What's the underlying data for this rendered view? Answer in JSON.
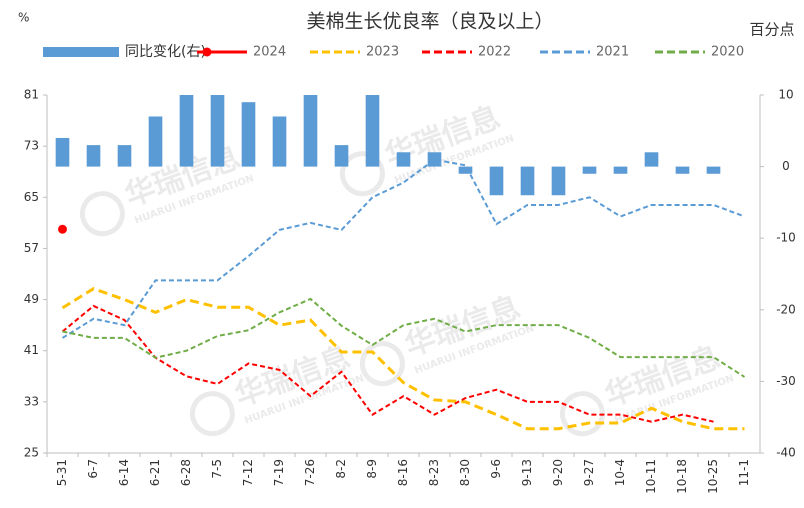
{
  "chart_data": {
    "type": "combo",
    "title": "美棉生长优良率（良及以上）",
    "y_label": "%",
    "y2_label": "百分点",
    "watermark": "华瑞信息",
    "watermark_sub": "HUARUI INFORMATION",
    "categories": [
      "5-31",
      "6-7",
      "6-14",
      "6-21",
      "6-28",
      "7-5",
      "7-12",
      "7-19",
      "7-26",
      "8-2",
      "8-9",
      "8-16",
      "8-23",
      "8-30",
      "9-6",
      "9-13",
      "9-20",
      "9-27",
      "10-4",
      "10-11",
      "10-18",
      "10-25",
      "11-1"
    ],
    "ylim": [
      25,
      81
    ],
    "yticks": [
      25,
      33,
      41,
      49,
      57,
      65,
      73,
      81
    ],
    "y2lim": [
      -40,
      10
    ],
    "y2ticks": [
      -40,
      -30,
      -20,
      -10,
      0,
      10
    ],
    "grid": false,
    "series": [
      {
        "name": "同比变化(右)",
        "type": "bar",
        "axis": "y2",
        "color": "#5b9bd5",
        "values": [
          4,
          3,
          3,
          7,
          10,
          10,
          9,
          7,
          10,
          3,
          10,
          2,
          2,
          -1,
          -4,
          -4,
          -4,
          -1,
          -1,
          2,
          -1,
          -1,
          null
        ]
      },
      {
        "name": "2024",
        "type": "line",
        "line_style": "solid",
        "marker": true,
        "color": "#ff0000",
        "values": [
          60,
          null,
          null,
          null,
          null,
          null,
          null,
          null,
          null,
          null,
          null,
          null,
          null,
          null,
          null,
          null,
          null,
          null,
          null,
          null,
          null,
          null,
          null
        ]
      },
      {
        "name": "2023",
        "type": "line",
        "line_style": "dashed",
        "color": "#ffc000",
        "values": [
          47.7,
          50.7,
          49,
          47,
          49,
          47.8,
          47.8,
          45,
          45.8,
          40.8,
          40.8,
          36,
          33.3,
          33,
          31,
          28.8,
          28.8,
          29.7,
          29.7,
          32,
          29.9,
          28.8,
          28.8
        ]
      },
      {
        "name": "2022",
        "type": "line",
        "line_style": "dashed",
        "color": "#ff0000",
        "values": [
          44,
          48,
          45.8,
          39.9,
          37,
          35.8,
          39,
          38,
          33.9,
          37.7,
          31,
          33.9,
          31,
          33.6,
          34.9,
          33,
          33,
          31,
          31,
          29.9,
          31,
          29.9,
          null
        ]
      },
      {
        "name": "2021",
        "type": "line",
        "line_style": "dashed",
        "color": "#5b9bd5",
        "values": [
          43,
          46,
          45,
          52,
          52,
          52,
          55.8,
          59.9,
          61,
          59.9,
          65,
          67.3,
          70.9,
          70,
          60.8,
          63.8,
          63.8,
          65,
          62,
          63.8,
          63.8,
          63.8,
          62
        ]
      },
      {
        "name": "2020",
        "type": "line",
        "line_style": "dashed",
        "color": "#70ad47",
        "values": [
          44,
          43,
          43,
          39.9,
          41,
          43.3,
          44.2,
          47,
          49.1,
          44.9,
          41.9,
          45,
          46,
          44,
          45,
          45,
          45,
          43,
          40,
          40,
          40,
          40,
          36.9
        ]
      }
    ]
  }
}
